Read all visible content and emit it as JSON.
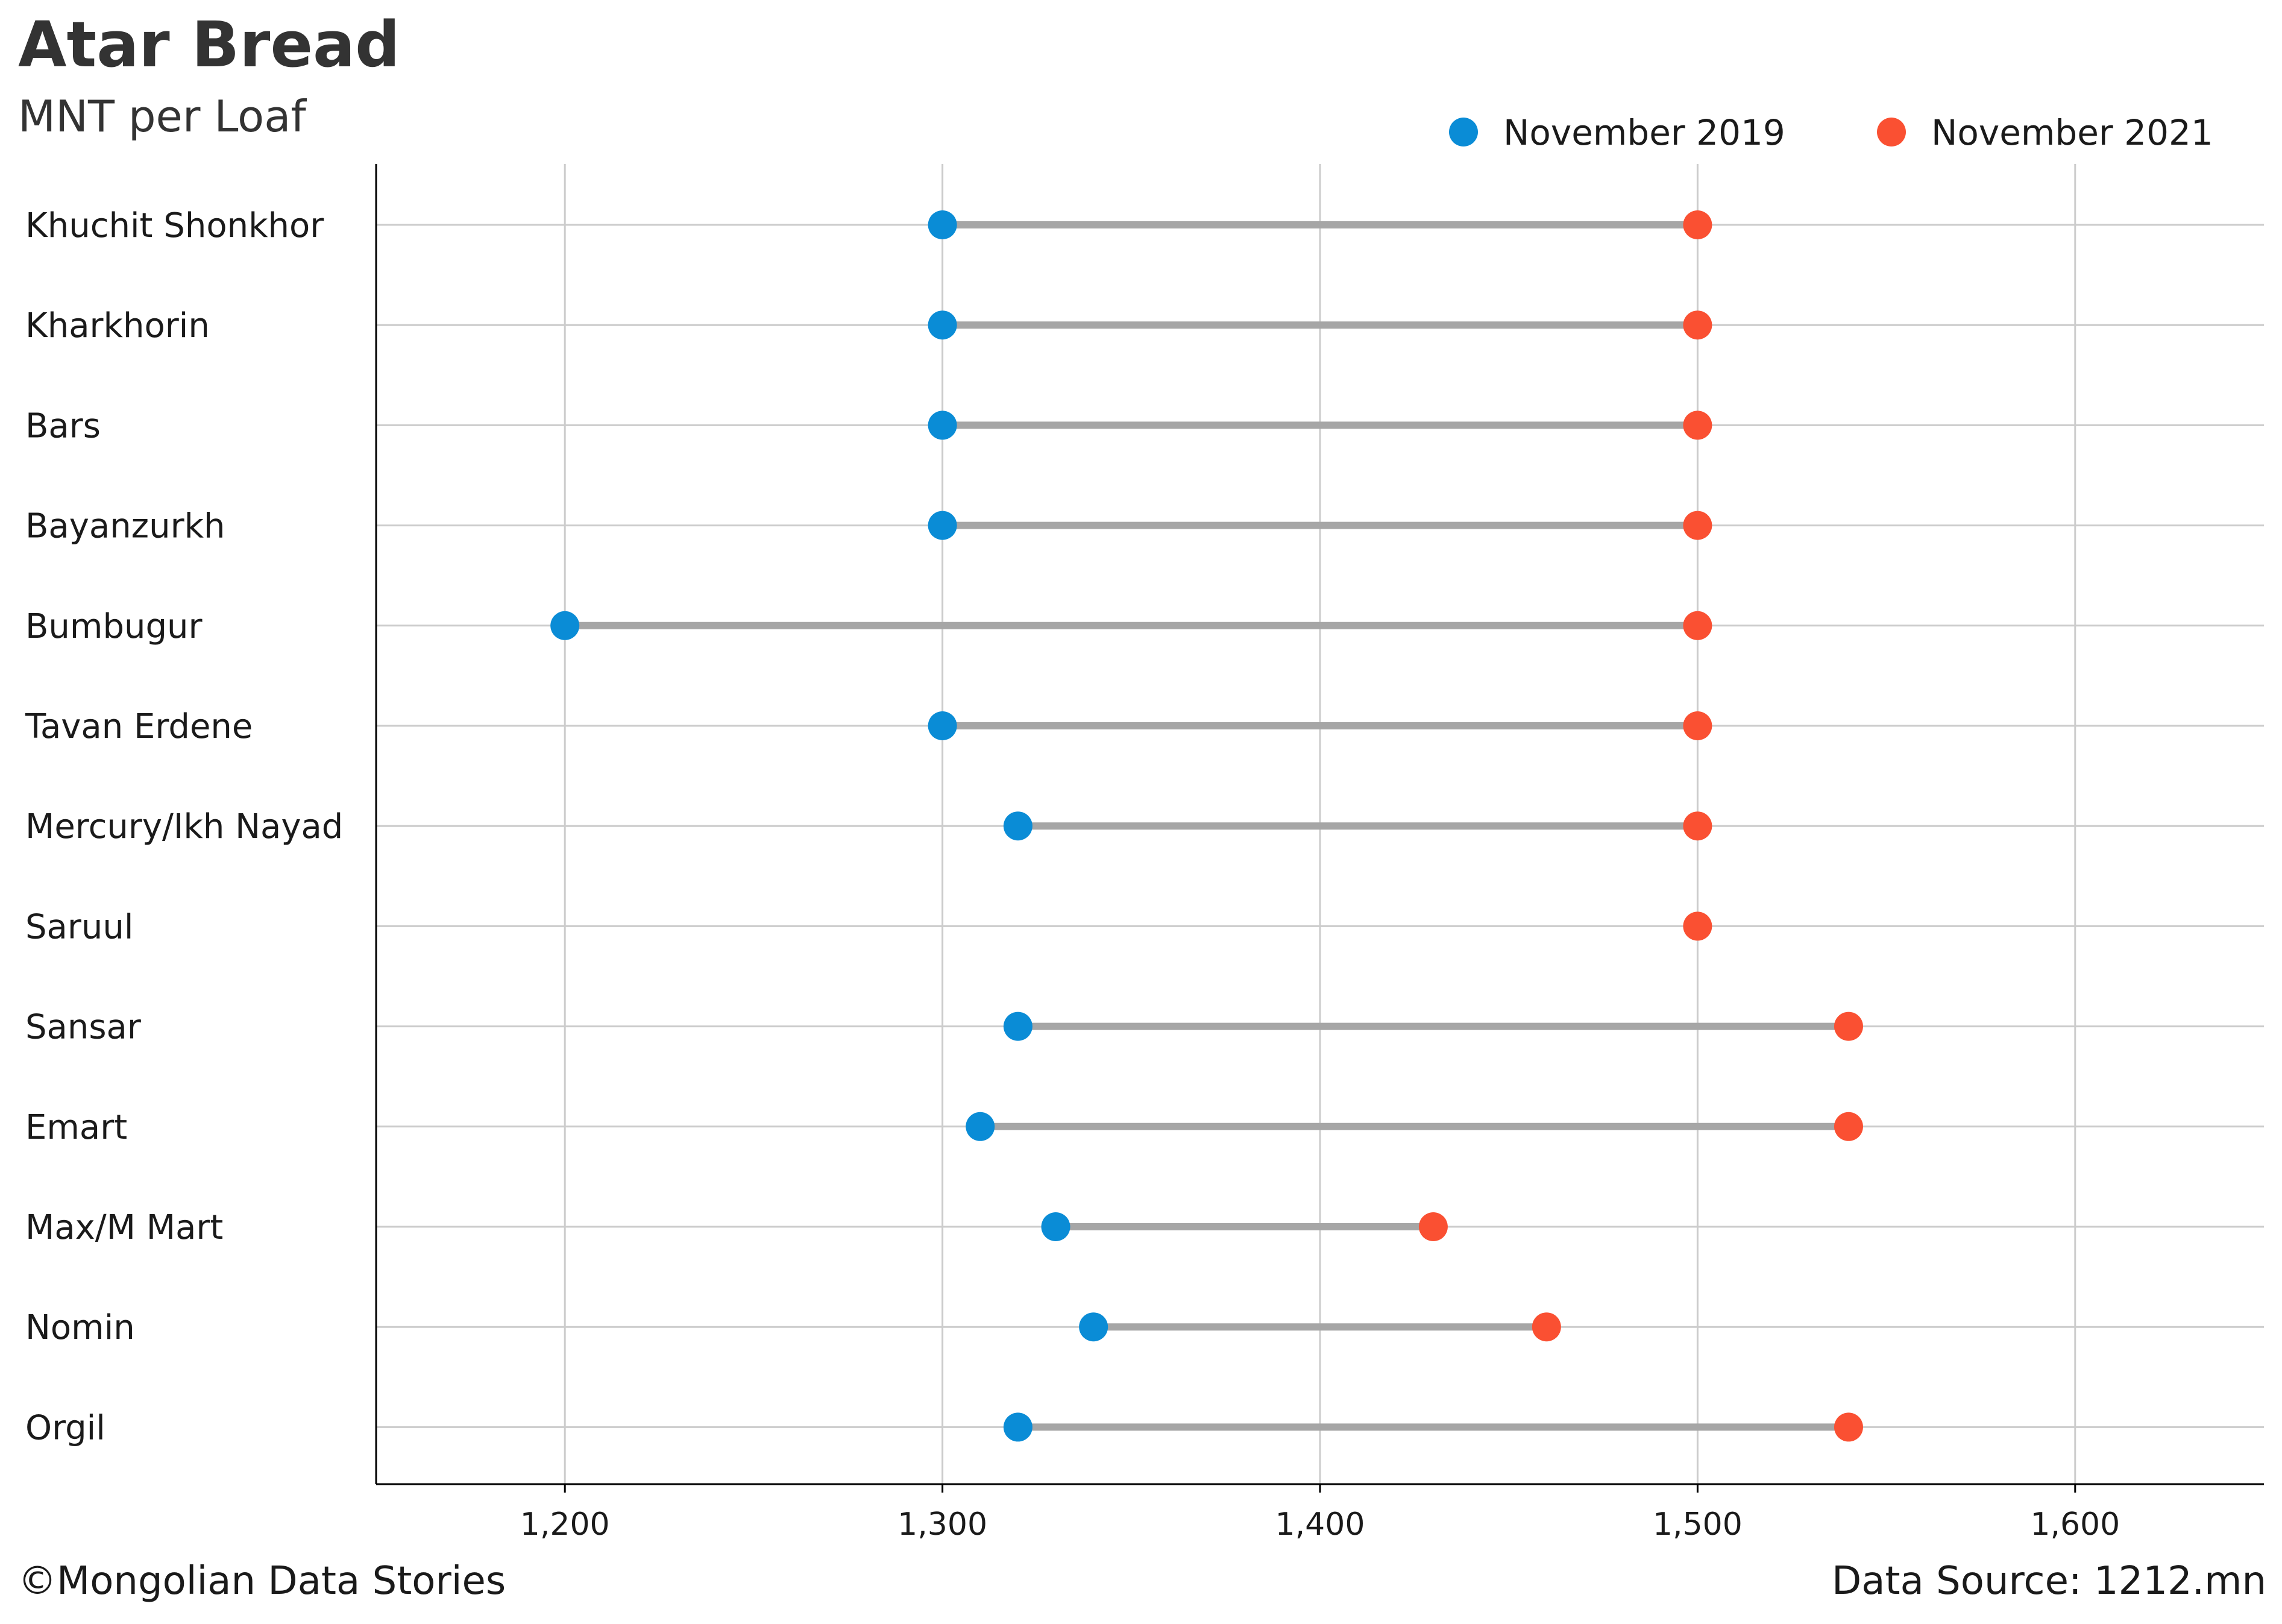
{
  "header": {
    "title": "Atar Bread",
    "subtitle": "MNT per Loaf"
  },
  "footer": {
    "copyright": "©Mongolian Data Stories",
    "source": "Data Source: 1212.mn"
  },
  "colors": {
    "series_2019": "#0a8cd6",
    "series_2021": "#fa5032",
    "connector": "#a6a6a6",
    "grid": "#cccccc",
    "axis": "#000000"
  },
  "chart_data": {
    "type": "dumbbell",
    "title": "Atar Bread",
    "subtitle": "MNT per Loaf",
    "xlabel": "",
    "ylabel": "",
    "xlim": [
      1150,
      1650
    ],
    "xticks": [
      1200,
      1300,
      1400,
      1500,
      1600
    ],
    "xtick_labels": [
      "1,200",
      "1,300",
      "1,400",
      "1,500",
      "1,600"
    ],
    "grid": true,
    "legend_position": "top-right",
    "categories": [
      "Khuchit Shonkhor",
      "Kharkhorin",
      "Bars",
      "Bayanzurkh",
      "Bumbugur",
      "Tavan Erdene",
      "Mercury/Ikh Nayad",
      "Saruul",
      "Sansar",
      "Emart",
      "Max/M Mart",
      "Nomin",
      "Orgil"
    ],
    "series": [
      {
        "name": "November 2019",
        "color": "#0a8cd6",
        "values": [
          1300,
          1300,
          1300,
          1300,
          1200,
          1300,
          1320,
          null,
          1320,
          1310,
          1330,
          1340,
          1320
        ]
      },
      {
        "name": "November 2021",
        "color": "#fa5032",
        "values": [
          1500,
          1500,
          1500,
          1500,
          1500,
          1500,
          1500,
          1500,
          1540,
          1540,
          1430,
          1460,
          1540
        ]
      }
    ]
  }
}
